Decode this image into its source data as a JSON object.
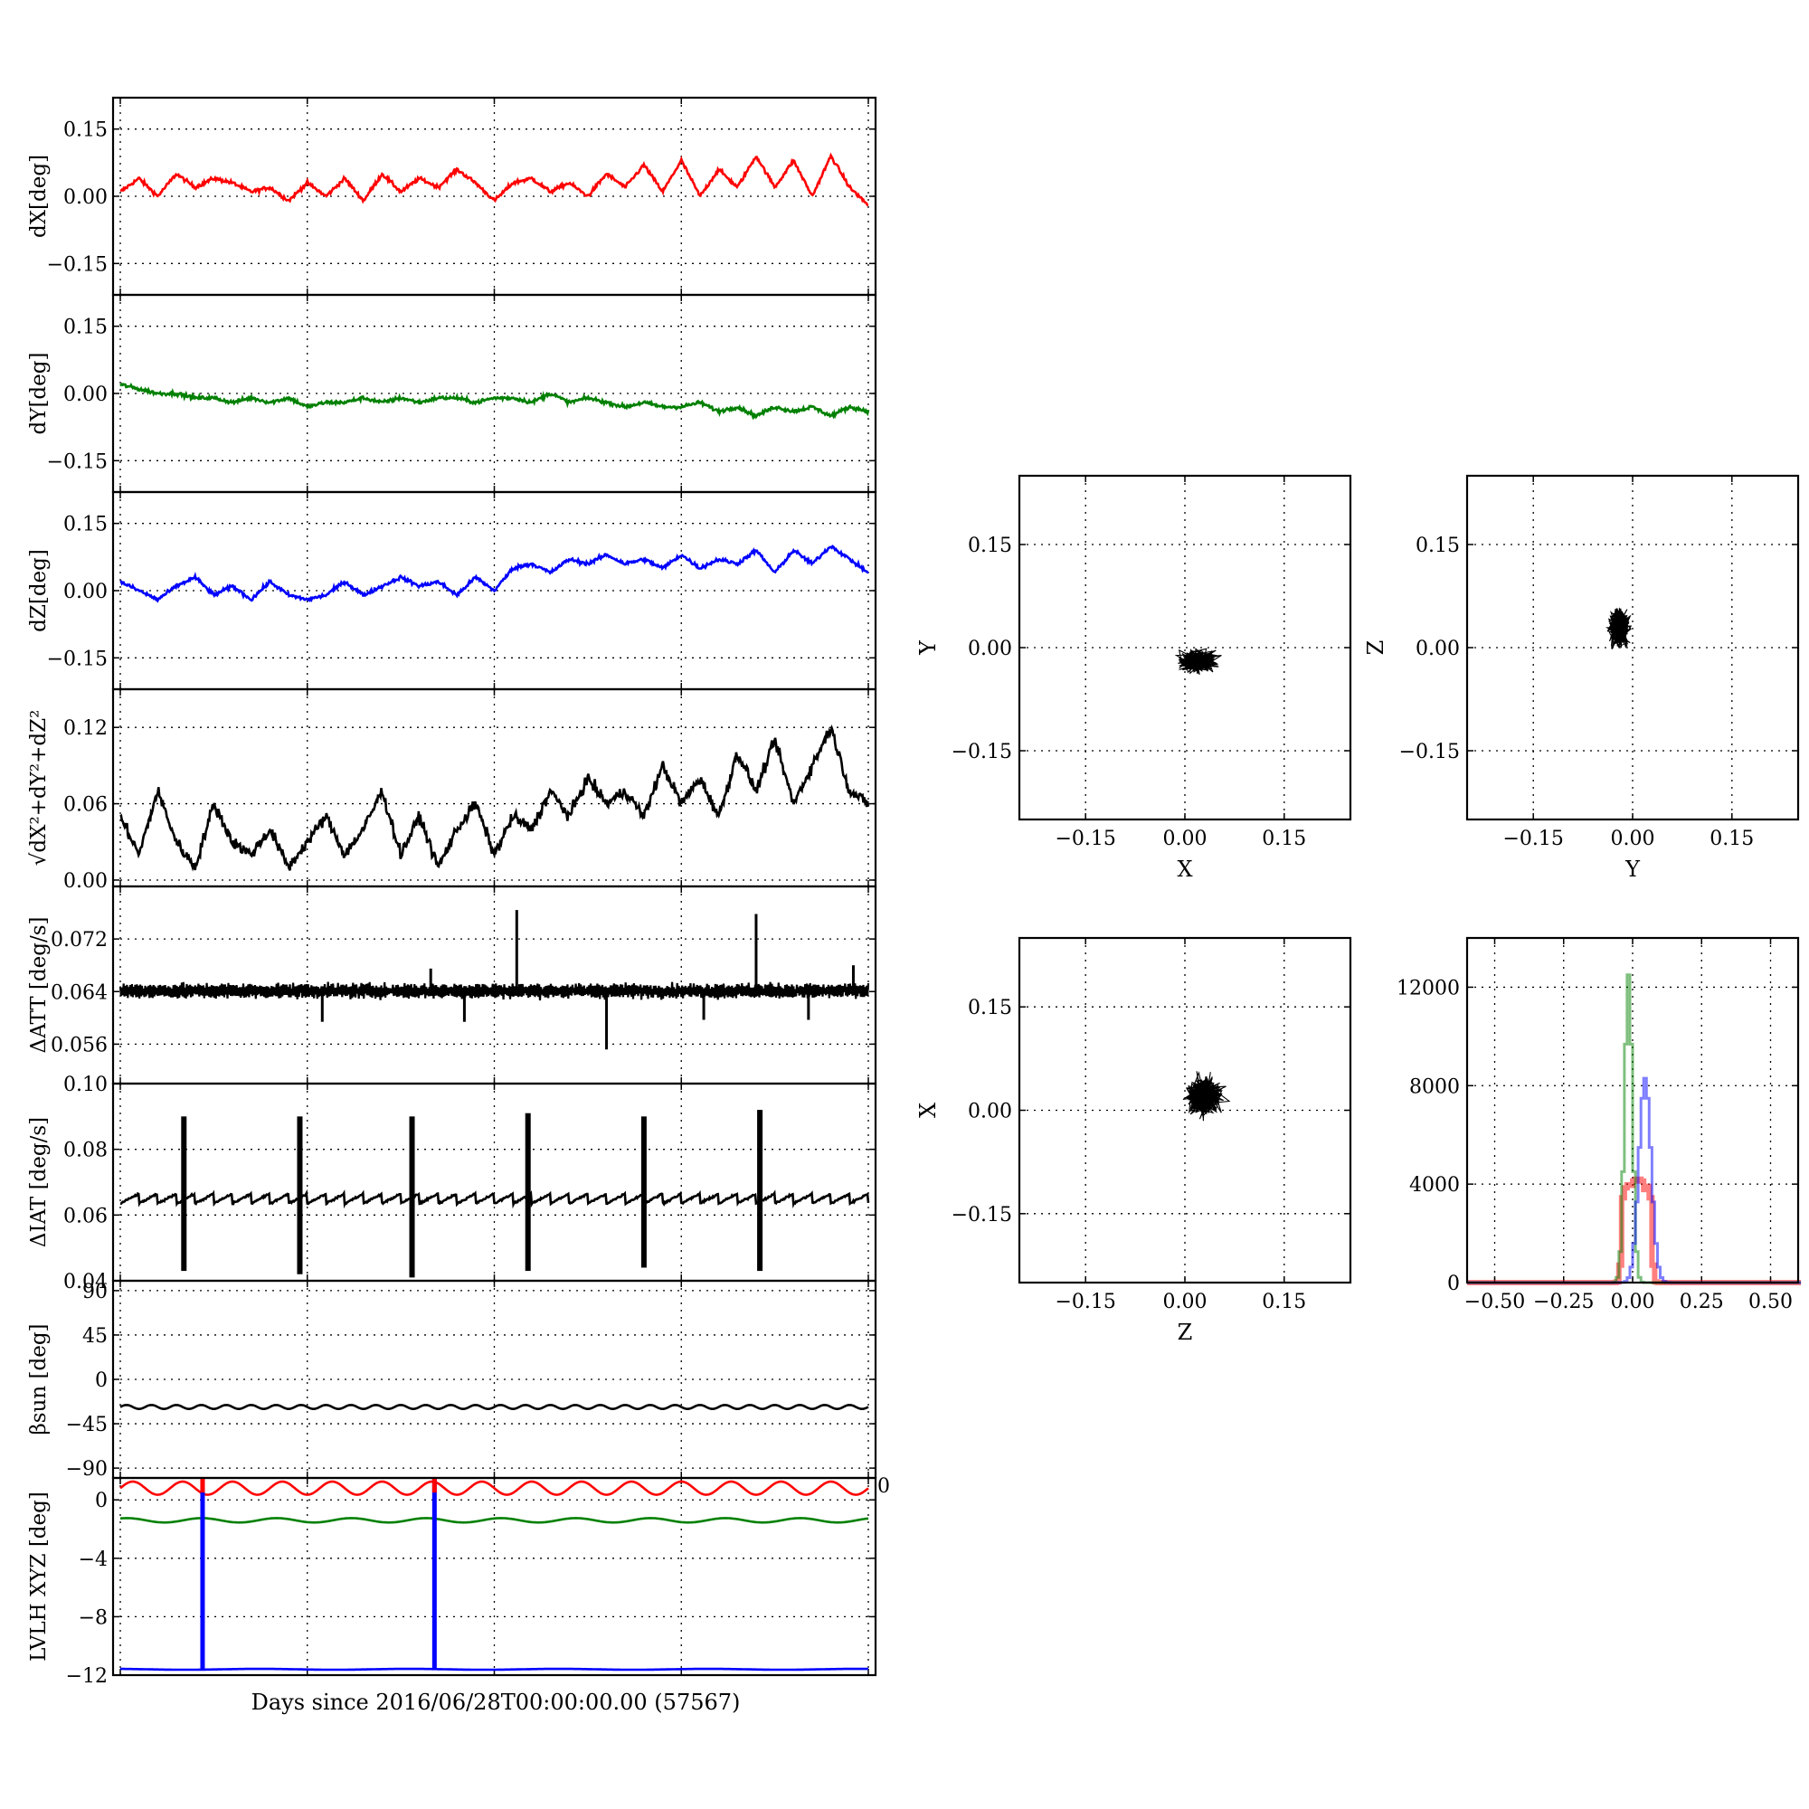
{
  "figure": {
    "time_xlabel": "Days since 2016/06/28T00:00:00.00 (57567)"
  },
  "chart_data": [
    {
      "type": "line",
      "ylabel": "dX[deg]",
      "ylim": [
        -0.22,
        0.22
      ],
      "yticks": [
        -0.15,
        0.0,
        0.15
      ],
      "ytick_labels": [
        "−0.15",
        "0.00",
        "0.15"
      ],
      "xlim": [
        0,
        1
      ],
      "grid": true,
      "color": "#ff0000",
      "x": [
        0,
        0.025,
        0.05,
        0.075,
        0.1,
        0.125,
        0.15,
        0.175,
        0.2,
        0.225,
        0.25,
        0.275,
        0.3,
        0.325,
        0.35,
        0.375,
        0.4,
        0.425,
        0.45,
        0.475,
        0.5,
        0.525,
        0.55,
        0.575,
        0.6,
        0.625,
        0.65,
        0.675,
        0.7,
        0.725,
        0.75,
        0.775,
        0.8,
        0.825,
        0.85,
        0.875,
        0.9,
        0.925,
        0.95,
        0.975,
        1.0
      ],
      "y": [
        0.01,
        0.04,
        0.0,
        0.05,
        0.02,
        0.04,
        0.03,
        0.01,
        0.02,
        -0.01,
        0.03,
        0.0,
        0.04,
        -0.01,
        0.05,
        0.01,
        0.04,
        0.02,
        0.06,
        0.03,
        -0.01,
        0.03,
        0.04,
        0.01,
        0.03,
        0.0,
        0.05,
        0.02,
        0.07,
        0.01,
        0.08,
        0.0,
        0.06,
        0.02,
        0.09,
        0.02,
        0.08,
        0.0,
        0.09,
        0.02,
        -0.02
      ]
    },
    {
      "type": "line",
      "ylabel": "dY[deg]",
      "ylim": [
        -0.22,
        0.22
      ],
      "yticks": [
        -0.15,
        0.0,
        0.15
      ],
      "ytick_labels": [
        "−0.15",
        "0.00",
        "0.15"
      ],
      "xlim": [
        0,
        1
      ],
      "grid": true,
      "color": "#008000",
      "x": [
        0,
        0.025,
        0.05,
        0.075,
        0.1,
        0.125,
        0.15,
        0.175,
        0.2,
        0.225,
        0.25,
        0.275,
        0.3,
        0.325,
        0.35,
        0.375,
        0.4,
        0.425,
        0.45,
        0.475,
        0.5,
        0.525,
        0.55,
        0.575,
        0.6,
        0.625,
        0.65,
        0.675,
        0.7,
        0.725,
        0.75,
        0.775,
        0.8,
        0.825,
        0.85,
        0.875,
        0.9,
        0.925,
        0.95,
        0.975,
        1.0
      ],
      "y": [
        0.02,
        0.01,
        0.0,
        0.0,
        -0.01,
        -0.01,
        -0.02,
        -0.01,
        -0.02,
        -0.01,
        -0.03,
        -0.02,
        -0.02,
        -0.01,
        -0.02,
        -0.01,
        -0.02,
        -0.01,
        -0.01,
        -0.02,
        -0.01,
        -0.01,
        -0.02,
        0.0,
        -0.02,
        -0.01,
        -0.02,
        -0.03,
        -0.02,
        -0.03,
        -0.03,
        -0.02,
        -0.04,
        -0.03,
        -0.05,
        -0.03,
        -0.04,
        -0.03,
        -0.05,
        -0.03,
        -0.04
      ]
    },
    {
      "type": "line",
      "ylabel": "dZ[deg]",
      "ylim": [
        -0.22,
        0.22
      ],
      "yticks": [
        -0.15,
        0.0,
        0.15
      ],
      "ytick_labels": [
        "−0.15",
        "0.00",
        "0.15"
      ],
      "xlim": [
        0,
        1
      ],
      "grid": true,
      "color": "#0000ff",
      "x": [
        0,
        0.025,
        0.05,
        0.075,
        0.1,
        0.125,
        0.15,
        0.175,
        0.2,
        0.225,
        0.25,
        0.275,
        0.3,
        0.325,
        0.35,
        0.375,
        0.4,
        0.425,
        0.45,
        0.475,
        0.5,
        0.525,
        0.55,
        0.575,
        0.6,
        0.625,
        0.65,
        0.675,
        0.7,
        0.725,
        0.75,
        0.775,
        0.8,
        0.825,
        0.85,
        0.875,
        0.9,
        0.925,
        0.95,
        0.975,
        1.0
      ],
      "y": [
        0.02,
        0.0,
        -0.02,
        0.01,
        0.03,
        -0.01,
        0.01,
        -0.02,
        0.02,
        -0.01,
        -0.02,
        -0.01,
        0.02,
        -0.01,
        0.01,
        0.03,
        0.01,
        0.02,
        -0.01,
        0.03,
        0.0,
        0.05,
        0.06,
        0.04,
        0.07,
        0.06,
        0.08,
        0.06,
        0.07,
        0.05,
        0.08,
        0.05,
        0.07,
        0.06,
        0.09,
        0.04,
        0.09,
        0.06,
        0.1,
        0.07,
        0.04
      ]
    },
    {
      "type": "line",
      "ylabel": "√dX²+dY²+dZ²",
      "ylim": [
        -0.005,
        0.15
      ],
      "yticks": [
        0.0,
        0.06,
        0.12
      ],
      "ytick_labels": [
        "0.00",
        "0.06",
        "0.12"
      ],
      "xlim": [
        0,
        1
      ],
      "grid": true,
      "color": "#000000",
      "x": [
        0,
        0.025,
        0.05,
        0.075,
        0.1,
        0.125,
        0.15,
        0.175,
        0.2,
        0.225,
        0.25,
        0.275,
        0.3,
        0.325,
        0.35,
        0.375,
        0.4,
        0.425,
        0.45,
        0.475,
        0.5,
        0.525,
        0.55,
        0.575,
        0.6,
        0.625,
        0.65,
        0.675,
        0.7,
        0.725,
        0.75,
        0.775,
        0.8,
        0.825,
        0.85,
        0.875,
        0.9,
        0.925,
        0.95,
        0.975,
        1.0
      ],
      "y": [
        0.05,
        0.02,
        0.07,
        0.03,
        0.01,
        0.06,
        0.03,
        0.02,
        0.04,
        0.01,
        0.03,
        0.05,
        0.02,
        0.04,
        0.07,
        0.02,
        0.05,
        0.01,
        0.04,
        0.06,
        0.02,
        0.05,
        0.04,
        0.07,
        0.05,
        0.08,
        0.06,
        0.07,
        0.05,
        0.09,
        0.06,
        0.08,
        0.05,
        0.1,
        0.07,
        0.11,
        0.06,
        0.09,
        0.12,
        0.07,
        0.06
      ]
    },
    {
      "type": "line",
      "ylabel": "ΔATT [deg/s]",
      "ylim": [
        0.05,
        0.08
      ],
      "yticks": [
        0.056,
        0.064,
        0.072
      ],
      "ytick_labels": [
        "0.056",
        "0.064",
        "0.072"
      ],
      "xlim": [
        0,
        1
      ],
      "grid": true,
      "color": "#000000",
      "baseline": 0.0642,
      "spikes": [
        {
          "x": 0.27,
          "y": 0.0594
        },
        {
          "x": 0.415,
          "y": 0.0675
        },
        {
          "x": 0.46,
          "y": 0.0594
        },
        {
          "x": 0.53,
          "y": 0.0764
        },
        {
          "x": 0.65,
          "y": 0.0552
        },
        {
          "x": 0.78,
          "y": 0.0597
        },
        {
          "x": 0.85,
          "y": 0.0758
        },
        {
          "x": 0.92,
          "y": 0.0597
        },
        {
          "x": 0.98,
          "y": 0.068
        }
      ]
    },
    {
      "type": "line",
      "ylabel": "ΔIAT [deg/s]",
      "ylim": [
        0.04,
        0.1
      ],
      "yticks": [
        0.04,
        0.06,
        0.08,
        0.1
      ],
      "ytick_labels": [
        "0.04",
        "0.06",
        "0.08",
        "0.10"
      ],
      "xlim": [
        0,
        1
      ],
      "grid": true,
      "color": "#000000",
      "baseline": 0.065,
      "spikes": [
        {
          "x": 0.085,
          "y_min": 0.043,
          "y_max": 0.09
        },
        {
          "x": 0.24,
          "y_min": 0.042,
          "y_max": 0.09
        },
        {
          "x": 0.39,
          "y_min": 0.041,
          "y_max": 0.09
        },
        {
          "x": 0.545,
          "y_min": 0.043,
          "y_max": 0.091
        },
        {
          "x": 0.7,
          "y_min": 0.044,
          "y_max": 0.09
        },
        {
          "x": 0.855,
          "y_min": 0.043,
          "y_max": 0.092
        }
      ]
    },
    {
      "type": "line",
      "ylabel": "βsun [deg]",
      "ylim": [
        -100,
        100
      ],
      "yticks": [
        -90,
        -45,
        0,
        45,
        90
      ],
      "ytick_labels": [
        "−90",
        "−45",
        "0",
        "45",
        "90"
      ],
      "xlim": [
        0,
        1
      ],
      "grid": true,
      "color": "#000000",
      "mean": -28,
      "amplitude": 2,
      "cycles": 30
    },
    {
      "type": "line",
      "ylabel": "LVLH XYZ [deg]",
      "ylim": [
        -12,
        1.5
      ],
      "yticks": [
        -12,
        -8,
        -4,
        0
      ],
      "ytick_labels": [
        "−12",
        "−8",
        "−4",
        "0"
      ],
      "right_ticklabel": "0",
      "xlim": [
        0,
        1
      ],
      "grid": true,
      "series": [
        {
          "color": "#ff0000",
          "mean": 0.8,
          "amplitude": 0.45,
          "cycles": 15
        },
        {
          "color": "#008000",
          "mean": -1.4,
          "amplitude": 0.15,
          "cycles": 10
        },
        {
          "color": "#0000ff",
          "mean": -11.6,
          "amplitude": 0.03,
          "cycles": 5
        }
      ],
      "jumps_to_top": [
        0.11,
        0.42
      ]
    },
    {
      "type": "scatter",
      "xlabel": "X",
      "ylabel": "Y",
      "xlim": [
        -0.25,
        0.25
      ],
      "ylim": [
        -0.25,
        0.25
      ],
      "xticks": [
        -0.15,
        0.0,
        0.15
      ],
      "yticks": [
        -0.15,
        0.0,
        0.15
      ],
      "tick_labels": [
        "−0.15",
        "0.00",
        "0.15"
      ],
      "grid": true,
      "color": "#000000",
      "x_center": 0.02,
      "x_spread": 0.045,
      "y_center": -0.02,
      "y_spread": 0.025
    },
    {
      "type": "scatter",
      "xlabel": "Y",
      "ylabel": "Z",
      "xlim": [
        -0.25,
        0.25
      ],
      "ylim": [
        -0.25,
        0.25
      ],
      "xticks": [
        -0.15,
        0.0,
        0.15
      ],
      "yticks": [
        -0.15,
        0.0,
        0.15
      ],
      "tick_labels": [
        "−0.15",
        "0.00",
        "0.15"
      ],
      "grid": true,
      "color": "#000000",
      "x_center": -0.02,
      "x_spread": 0.025,
      "y_center": 0.03,
      "y_spread": 0.045
    },
    {
      "type": "scatter",
      "xlabel": "Z",
      "ylabel": "X",
      "xlim": [
        -0.25,
        0.25
      ],
      "ylim": [
        -0.25,
        0.25
      ],
      "xticks": [
        -0.15,
        0.0,
        0.15
      ],
      "yticks": [
        -0.15,
        0.0,
        0.15
      ],
      "tick_labels": [
        "−0.15",
        "0.00",
        "0.15"
      ],
      "grid": true,
      "color": "#000000",
      "x_center": 0.03,
      "x_spread": 0.045,
      "y_center": 0.02,
      "y_spread": 0.045
    },
    {
      "type": "bar",
      "xlim": [
        -0.6,
        0.6
      ],
      "ylim": [
        0,
        14000
      ],
      "xticks": [
        -0.5,
        -0.25,
        0.0,
        0.25,
        0.5
      ],
      "xtick_labels": [
        "−0.50",
        "−0.25",
        "0.00",
        "0.25",
        "0.50"
      ],
      "yticks": [
        0,
        4000,
        8000,
        12000
      ],
      "ytick_labels": [
        "0",
        "4000",
        "8000",
        "12000"
      ],
      "grid": true,
      "bin_width": 0.01,
      "series": [
        {
          "color": "#ff0000",
          "center": 0.01,
          "width": 0.045,
          "peak": 4200,
          "flat": true
        },
        {
          "color": "#008000",
          "center": -0.02,
          "width": 0.014,
          "peak": 12500
        },
        {
          "color": "#0000ff",
          "center": 0.04,
          "width": 0.022,
          "peak": 8300
        }
      ]
    }
  ]
}
